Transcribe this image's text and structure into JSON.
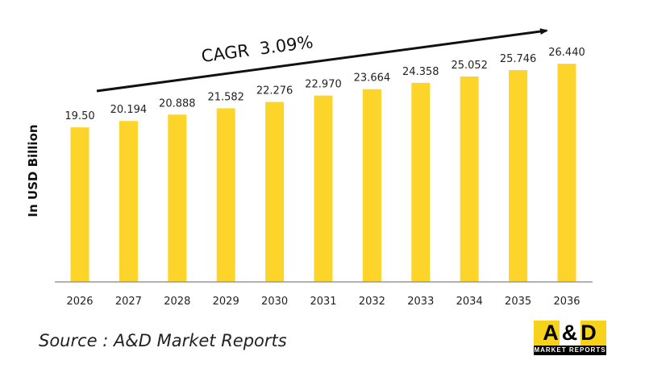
{
  "chart_data": {
    "type": "bar",
    "categories": [
      "2026",
      "2027",
      "2028",
      "2029",
      "2030",
      "2031",
      "2032",
      "2033",
      "2034",
      "2035",
      "2036"
    ],
    "values": [
      19.5,
      20.194,
      20.888,
      21.582,
      22.276,
      22.97,
      23.664,
      24.358,
      25.052,
      25.746,
      26.44
    ],
    "value_labels": [
      "19.50",
      "20.194",
      "20.888",
      "21.582",
      "22.276",
      "22.970",
      "23.664",
      "24.358",
      "25.052",
      "25.746",
      "26.440"
    ],
    "ylabel": "In USD Billion",
    "xlabel": "",
    "annotation": "CAGR  3.09%",
    "bar_color": "#fdd52a",
    "grid": false,
    "legend": "none"
  },
  "source": "Source : A&D Market Reports",
  "logo": {
    "top": "A&D",
    "bottom": "MARKET REPORTS"
  }
}
